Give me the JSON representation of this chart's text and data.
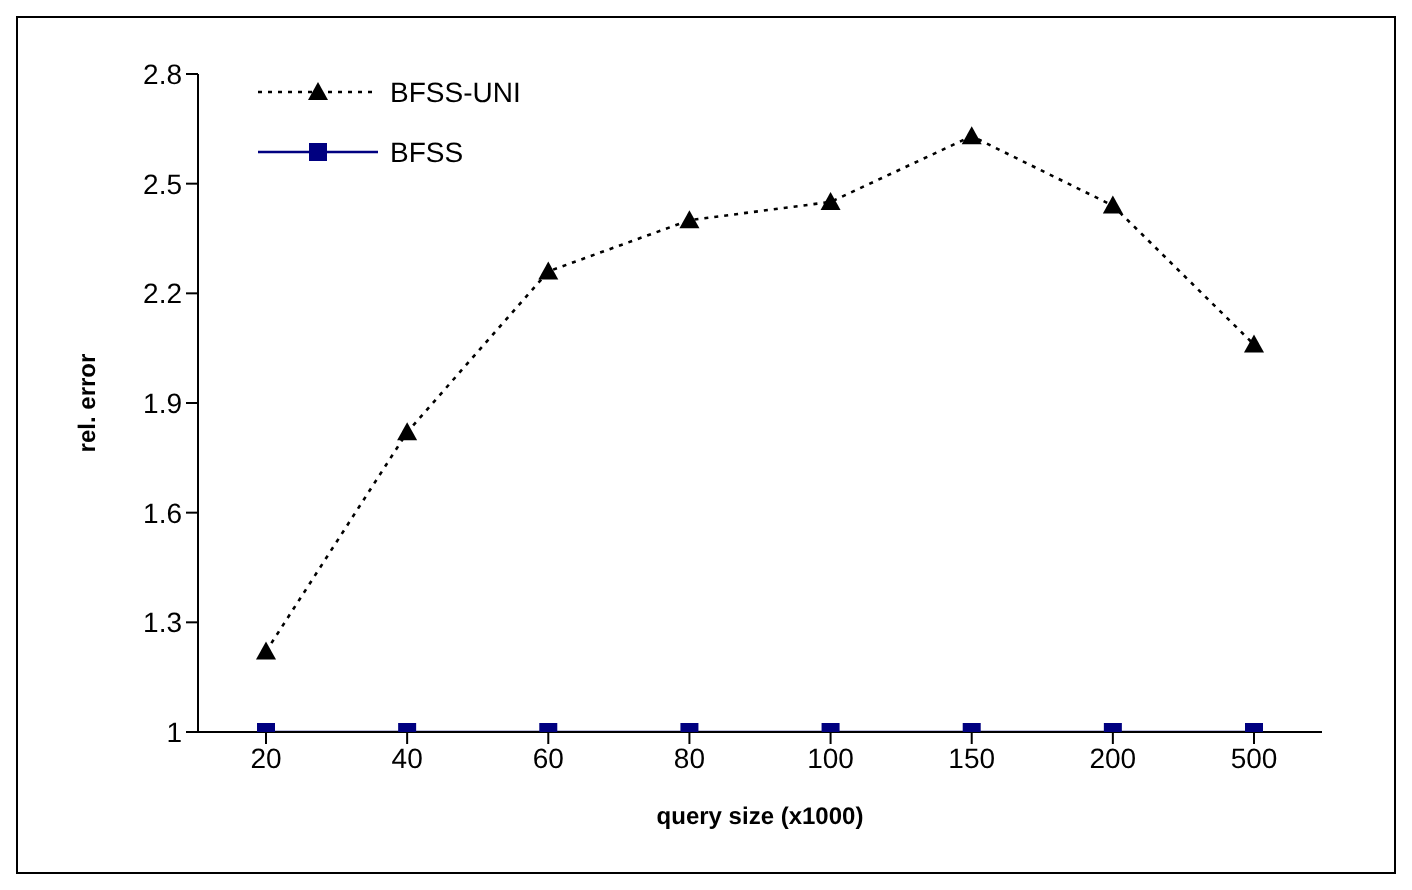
{
  "chart_data": {
    "type": "line",
    "xlabel": "query size (x1000)",
    "ylabel": "rel. error",
    "categories": [
      "20",
      "40",
      "60",
      "80",
      "100",
      "150",
      "200",
      "500"
    ],
    "series": [
      {
        "name": "BFSS-UNI",
        "color": "#000000",
        "marker": "triangle",
        "line_style": "dotted",
        "values": [
          1.22,
          1.82,
          2.26,
          2.4,
          2.45,
          2.63,
          2.44,
          2.06
        ]
      },
      {
        "name": "BFSS",
        "color": "#000080",
        "marker": "square",
        "line_style": "solid",
        "values": [
          1,
          1,
          1,
          1,
          1,
          1,
          1,
          1
        ]
      }
    ],
    "ylim": [
      1,
      2.8
    ],
    "yticks": [
      1,
      1.3,
      1.6,
      1.9,
      2.2,
      2.5,
      2.8
    ],
    "grid": false,
    "legend": "top left"
  }
}
